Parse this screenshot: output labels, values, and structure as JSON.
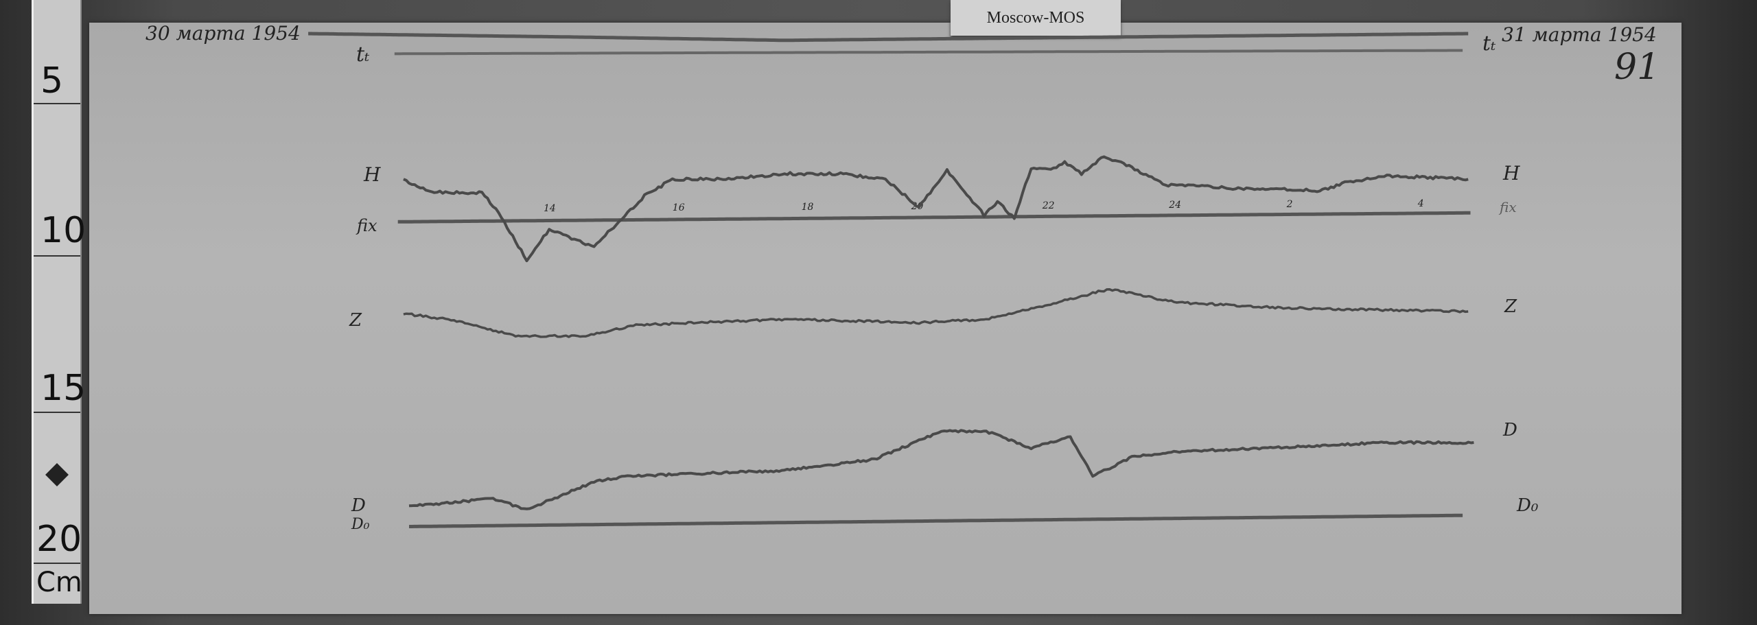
{
  "ruler": {
    "marks": [
      "5",
      "10",
      "15",
      "20"
    ],
    "unit": "Cm"
  },
  "tag": {
    "label": "Moscow-MOS"
  },
  "header": {
    "start_date": "30 марта 1954",
    "end_date": "31 марта 1954",
    "sheet_number": "91"
  },
  "labels": {
    "time_left": "tₜ",
    "time_right": "tₜ",
    "h_left": "H",
    "h_right": "H",
    "fix_left": "fix",
    "fix_right": "fix",
    "z_left": "Z",
    "z_right": "Z",
    "d_left": "D",
    "d_right": "D",
    "d0_left": "D₀",
    "d0_right": "D₀"
  },
  "hour_marks": [
    "14",
    "16",
    "18",
    "20",
    "22",
    "24",
    "2",
    "4"
  ],
  "colors": {
    "paper": "#b0b0b0",
    "trace": "#4a4a4a",
    "ink": "#222222"
  }
}
